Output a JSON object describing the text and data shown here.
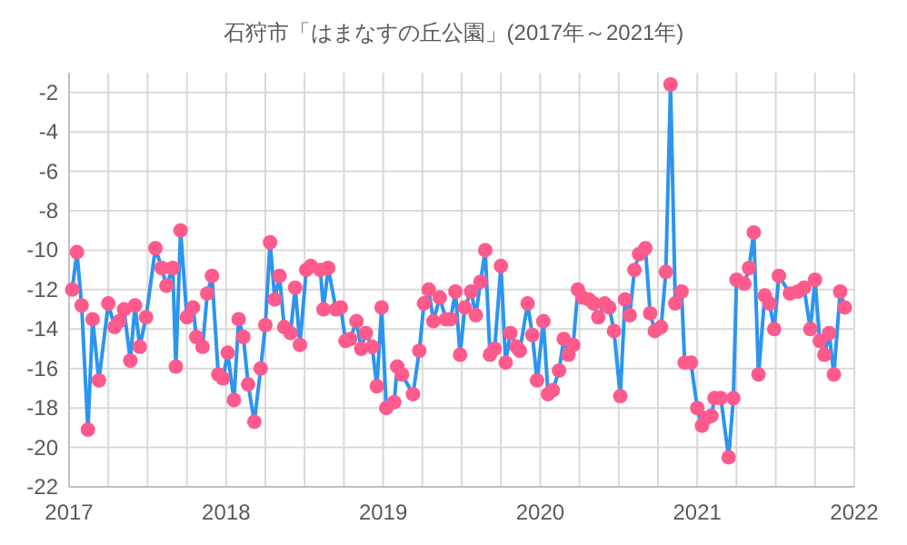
{
  "chart_data": {
    "type": "line",
    "title": "石狩市「はまなすの丘公園」(2017年～2021年)",
    "xlim": [
      2017,
      2022
    ],
    "xticks": [
      2017,
      {
        "value": 2017.25,
        "label": null
      },
      {
        "value": 2017.5,
        "label": null
      },
      {
        "value": 2017.75,
        "label": null
      },
      2018,
      {
        "value": 2018.25,
        "label": null
      },
      {
        "value": 2018.5,
        "label": null
      },
      {
        "value": 2018.75,
        "label": null
      },
      2019,
      {
        "value": 2019.25,
        "label": null
      },
      {
        "value": 2019.5,
        "label": null
      },
      {
        "value": 2019.75,
        "label": null
      },
      2020,
      {
        "value": 2020.25,
        "label": null
      },
      {
        "value": 2020.5,
        "label": null
      },
      {
        "value": 2020.75,
        "label": null
      },
      2021,
      {
        "value": 2021.25,
        "label": null
      },
      {
        "value": 2021.5,
        "label": null
      },
      {
        "value": 2021.75,
        "label": null
      },
      2022
    ],
    "ylim": [
      -22,
      -1
    ],
    "yticks": [
      -22,
      -20,
      -18,
      -16,
      -14,
      -12,
      -10,
      -8,
      -6,
      -4,
      -2
    ],
    "grid": true,
    "marker": "circle",
    "line_style": "solid",
    "series": [
      {
        "color": "#2b95f0",
        "colors": [
          "#ff5a8c",
          "#ff5a8c",
          "#ff5a8c",
          "#ff5a8c",
          "#ff5a8c",
          "#ff5a8c",
          "#ff5a8c",
          "#ff5a8c",
          "#ff5a8c",
          "#ff5a8c",
          "#ff5a8c",
          "#ff5a8c",
          "#ff5a8c",
          "#ff5a8c",
          "#ff5a8c",
          "#ff5a8c",
          "#ff5a8c",
          "#ff5a8c",
          "#ff5a8c",
          "#ff5a8c",
          "#ff5a8c",
          "#ff5a8c",
          "#ff5a8c",
          "#ff5a8c",
          "#ff5a8c",
          "#ff5a8c",
          "#ff5a8c",
          "#ff5a8c",
          "#ff5a8c",
          "#ff5a8c",
          "#ff5a8c",
          "#ff5a8c",
          "#ff5a8c",
          "#ff5a8c",
          "#ff5a8c",
          "#ff5a8c",
          "#ff5a8c",
          "#ff5a8c",
          "#ff5a8c",
          "#ff5a8c",
          "#ff5a8c",
          "#ff5a8c",
          "#ff5a8c",
          "#ff5a8c",
          "#ff5a8c",
          "#ff5a8c",
          "#ff5a8c",
          "#ff5a8c",
          "#ff5a8c",
          "#ff5a8c",
          "#ff5a8c",
          "#ff5a8c",
          "#ff5a8c",
          "#ff5a8c",
          "#ff5a8c",
          "#ff5a8c",
          "#ff5a8c",
          "#ff5a8c",
          "#ff5a8c",
          "#ff5a8c",
          "#ff5a8c",
          "#ff5a8c",
          "#ff5a8c",
          "#ff5a8c",
          "#ff5a8c",
          "#ff5a8c",
          "#ff5a8c",
          "#ff5a8c",
          "#ff5a8c",
          "#ff5a8c",
          "#ff5a8c",
          "#ff5a8c",
          "#ff5a8c",
          "#ff5a8c",
          "#ff5a8c",
          "#ff5a8c",
          "#ff5a8c",
          "#ff5a8c",
          "#ff5a8c",
          "#ff5a8c",
          "#ff5a8c",
          "#ff5a8c",
          "#ff5a8c",
          "#ff5a8c",
          "#ff5a8c",
          "#ff5a8c",
          "#ff5a8c",
          "#ff5a8c",
          "#ff5a8c",
          "#ff5a8c",
          "#ff5a8c",
          "#ff5a8c",
          "#ff5a8c",
          "#ff5a8c",
          "#ff5a8c",
          "#ff5a8c",
          "#ff5a8c",
          "#ff5a8c",
          "#ff5a8c",
          "#ff5a8c",
          "#ff5a8c",
          "#ff5a8c",
          "#ff5a8c",
          "#ff5a8c",
          "#ff5a8c",
          "#ff5a8c",
          "#ff5a8c",
          "#ff5a8c",
          "#ff5a8c",
          "#ff5a8c",
          "#ff5a8c",
          "#ff5a8c",
          "#ff5a8c",
          "#ff5a8c",
          "#ff5a8c",
          "#ff5a8c",
          "#ff5a8c",
          "#ff5a8c",
          "#ff5a8c",
          "#ff5a8c",
          "#ff5a8c",
          "#ff5a8c",
          "#ff5a8c",
          "#ff5a8c",
          "#ff5a8c",
          "#ff5a8c",
          "#ff5a8c",
          "#ff5a8c",
          "#ff5a8c",
          "#ff5a8c",
          "#ff5a8c",
          "#ff5a8c",
          "#ff5a8c",
          "#ff5a8c",
          "#ff5a8c",
          "#ff5a8c",
          "#ff5a8c",
          "#ff5a8c",
          "#ff5a8c",
          "#ff5a8c",
          "#ff5a8c",
          "#ff5a8c",
          "#ff5a8c",
          "#ff5a8c",
          "#ff5a8c"
        ],
        "x": [
          2017.02,
          2017.05,
          2017.08,
          2017.12,
          2017.15,
          2017.19,
          2017.25,
          2017.29,
          2017.32,
          2017.35,
          2017.39,
          2017.42,
          2017.45,
          2017.49,
          2017.55,
          2017.59,
          2017.62,
          2017.66,
          2017.68,
          2017.71,
          2017.75,
          2017.79,
          2017.81,
          2017.85,
          2017.88,
          2017.91,
          2017.95,
          2017.98,
          2018.01,
          2018.05,
          2018.08,
          2018.11,
          2018.14,
          2018.18,
          2018.22,
          2018.25,
          2018.28,
          2018.31,
          2018.34,
          2018.37,
          2018.41,
          2018.44,
          2018.47,
          2018.51,
          2018.54,
          2018.6,
          2018.62,
          2018.65,
          2018.7,
          2018.73,
          2018.76,
          2018.79,
          2018.83,
          2018.86,
          2018.89,
          2018.93,
          2018.96,
          2018.99,
          2019.02,
          2019.07,
          2019.09,
          2019.12,
          2019.19,
          2019.23,
          2019.26,
          2019.29,
          2019.32,
          2019.36,
          2019.4,
          2019.43,
          2019.46,
          2019.49,
          2019.52,
          2019.56,
          2019.59,
          2019.62,
          2019.65,
          2019.68,
          2019.71,
          2019.75,
          2019.78,
          2019.81,
          2019.85,
          2019.87,
          2019.92,
          2019.95,
          2019.98,
          2020.02,
          2020.05,
          2020.08,
          2020.12,
          2020.15,
          2020.18,
          2020.21,
          2020.24,
          2020.27,
          2020.31,
          2020.34,
          2020.37,
          2020.41,
          2020.44,
          2020.47,
          2020.51,
          2020.54,
          2020.57,
          2020.6,
          2020.63,
          2020.67,
          2020.7,
          2020.73,
          2020.77,
          2020.8,
          2020.83,
          2020.86,
          2020.9,
          2020.92,
          2020.96,
          2021.0,
          2021.03,
          2021.06,
          2021.09,
          2021.11,
          2021.15,
          2021.2,
          2021.23,
          2021.25,
          2021.3,
          2021.33,
          2021.36,
          2021.39,
          2021.43,
          2021.46,
          2021.49,
          2021.52,
          2021.59,
          2021.64,
          2021.68,
          2021.72,
          2021.75,
          2021.78,
          2021.81,
          2021.84,
          2021.87,
          2021.91,
          2021.94
        ],
        "values": [
          -12.0,
          -10.1,
          -12.8,
          -19.1,
          -13.5,
          -16.6,
          -12.7,
          -13.9,
          -13.6,
          -13.0,
          -15.6,
          -12.8,
          -14.9,
          -13.4,
          -9.9,
          -10.9,
          -11.8,
          -10.9,
          -15.9,
          -9.0,
          -13.4,
          -12.9,
          -14.4,
          -14.9,
          -12.2,
          -11.3,
          -16.3,
          -16.5,
          -15.2,
          -17.6,
          -13.5,
          -14.4,
          -16.8,
          -18.7,
          -16.0,
          -13.8,
          -9.6,
          -12.5,
          -11.3,
          -13.9,
          -14.2,
          -11.9,
          -14.8,
          -11.0,
          -10.8,
          -11.0,
          -13.0,
          -10.9,
          -13.0,
          -12.9,
          -14.6,
          -14.5,
          -13.6,
          -15.0,
          -14.2,
          -14.9,
          -16.9,
          -12.9,
          -18.0,
          -17.7,
          -15.9,
          -16.3,
          -17.3,
          -15.1,
          -12.7,
          -12.0,
          -13.6,
          -12.4,
          -13.5,
          -13.5,
          -12.1,
          -15.3,
          -12.9,
          -12.1,
          -13.3,
          -11.6,
          -10.0,
          -15.3,
          -15.0,
          -10.8,
          -15.7,
          -14.2,
          -14.9,
          -15.1,
          -12.7,
          -14.3,
          -16.6,
          -13.6,
          -17.3,
          -17.1,
          -16.1,
          -14.5,
          -15.3,
          -14.8,
          -12.0,
          -12.4,
          -12.5,
          -12.7,
          -13.4,
          -12.7,
          -12.9,
          -14.1,
          -17.4,
          -12.5,
          -13.3,
          -11.0,
          -10.2,
          -9.9,
          -13.2,
          -14.1,
          -13.9,
          -11.1,
          -1.6,
          -12.7,
          -12.1,
          -15.7,
          -15.7,
          -18.0,
          -18.9,
          -18.5,
          -18.4,
          -17.5,
          -17.5,
          -20.5,
          -17.5,
          -11.5,
          -11.7,
          -10.9,
          -9.1,
          -16.3,
          -12.3,
          -12.7,
          -14.0,
          -11.3,
          -12.2,
          -12.1,
          -11.9,
          -14.0,
          -11.5,
          -14.6,
          -15.3,
          -14.2,
          -16.3,
          -12.1,
          -12.9
        ]
      }
    ]
  }
}
